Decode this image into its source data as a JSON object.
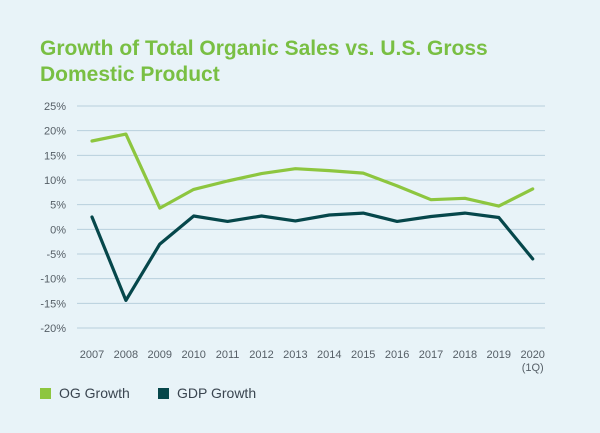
{
  "chart_data": {
    "type": "line",
    "title": "Growth of Total Organic Sales vs. U.S. Gross Domestic Product",
    "categories": [
      [
        "2007"
      ],
      [
        "2008"
      ],
      [
        "2009"
      ],
      [
        "2010"
      ],
      [
        "2011"
      ],
      [
        "2012"
      ],
      [
        "2013"
      ],
      [
        "2014"
      ],
      [
        "2015"
      ],
      [
        "2016"
      ],
      [
        "2017"
      ],
      [
        "2018"
      ],
      [
        "2019"
      ],
      [
        "2020",
        "(1Q)"
      ]
    ],
    "y_ticks": [
      "25%",
      "20%",
      "15%",
      "10%",
      "5%",
      "0%",
      "-5%",
      "-10%",
      "-15%",
      "-20%"
    ],
    "ylim": [
      -20,
      25
    ],
    "grid": true,
    "legend_position": "bottom-left",
    "series": [
      {
        "name": "OG Growth",
        "color": "#8dc63f",
        "values": [
          17.9,
          19.3,
          4.3,
          8.1,
          9.8,
          11.3,
          12.3,
          11.9,
          11.4,
          8.8,
          6.0,
          6.3,
          4.7,
          8.2
        ]
      },
      {
        "name": "GDP Growth",
        "color": "#06474b",
        "values": [
          2.5,
          -14.4,
          -3.0,
          2.7,
          1.6,
          2.7,
          1.7,
          2.9,
          3.3,
          1.6,
          2.6,
          3.3,
          2.4,
          -6.0
        ]
      }
    ]
  }
}
